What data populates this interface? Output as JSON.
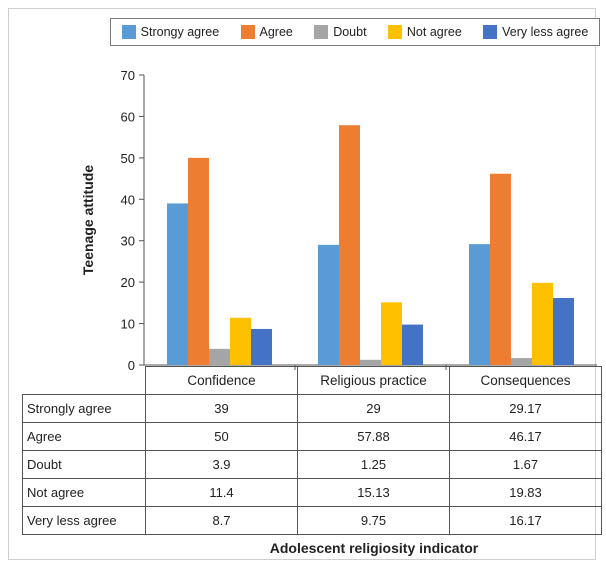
{
  "chart_data": {
    "type": "bar",
    "categories": [
      "Confidence",
      "Religious practice",
      "Consequences"
    ],
    "series": [
      {
        "name": "Strongy agree",
        "color": "#5b9bd5",
        "values": [
          39,
          29,
          29.17
        ]
      },
      {
        "name": "Agree",
        "color": "#ed7d31",
        "values": [
          50,
          57.88,
          46.17
        ]
      },
      {
        "name": "Doubt",
        "color": "#a5a5a5",
        "values": [
          3.9,
          1.25,
          1.67
        ]
      },
      {
        "name": "Not agree",
        "color": "#ffc000",
        "values": [
          11.4,
          15.13,
          19.83
        ]
      },
      {
        "name": "Very less agree",
        "color": "#4472c4",
        "values": [
          8.7,
          9.75,
          16.17
        ]
      }
    ],
    "table_rows": [
      {
        "label": "Strongly agree",
        "values": [
          "39",
          "29",
          "29.17"
        ]
      },
      {
        "label": "Agree",
        "values": [
          "50",
          "57.88",
          "46.17"
        ]
      },
      {
        "label": "Doubt",
        "values": [
          "3.9",
          "1.25",
          "1.67"
        ]
      },
      {
        "label": "Not agree",
        "values": [
          "11.4",
          "15.13",
          "19.83"
        ]
      },
      {
        "label": "Very less agree",
        "values": [
          "8.7",
          "9.75",
          "16.17"
        ]
      }
    ],
    "ylabel": "Teenage attitude",
    "xlabel": "Adolescent religiosity indicator",
    "ylim": [
      0,
      70
    ],
    "yticks": [
      0,
      10,
      20,
      30,
      40,
      50,
      60,
      70
    ],
    "legend_position": "top",
    "grid": false
  }
}
